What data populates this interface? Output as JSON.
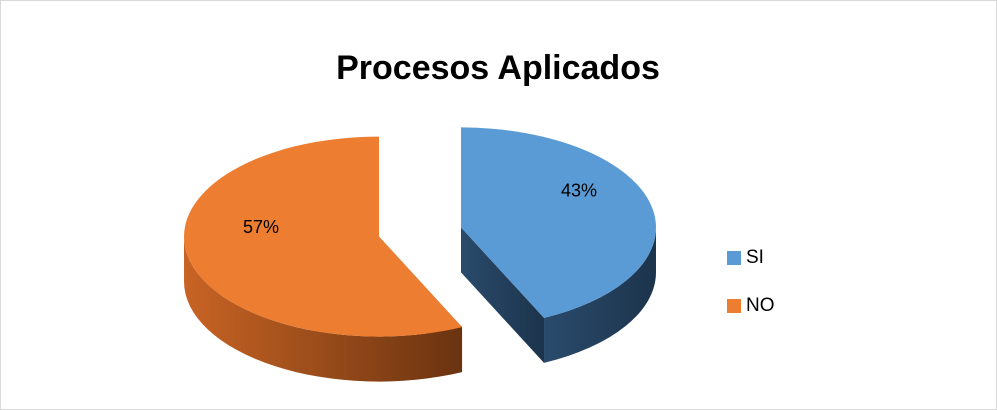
{
  "chart_data": {
    "type": "pie",
    "title": "Procesos Aplicados",
    "categories": [
      "SI",
      "NO"
    ],
    "values": [
      43,
      57
    ],
    "value_labels": [
      "43%",
      "57%"
    ],
    "colors": [
      "#5b9bd5",
      "#ed7d31"
    ],
    "legend": "right"
  }
}
